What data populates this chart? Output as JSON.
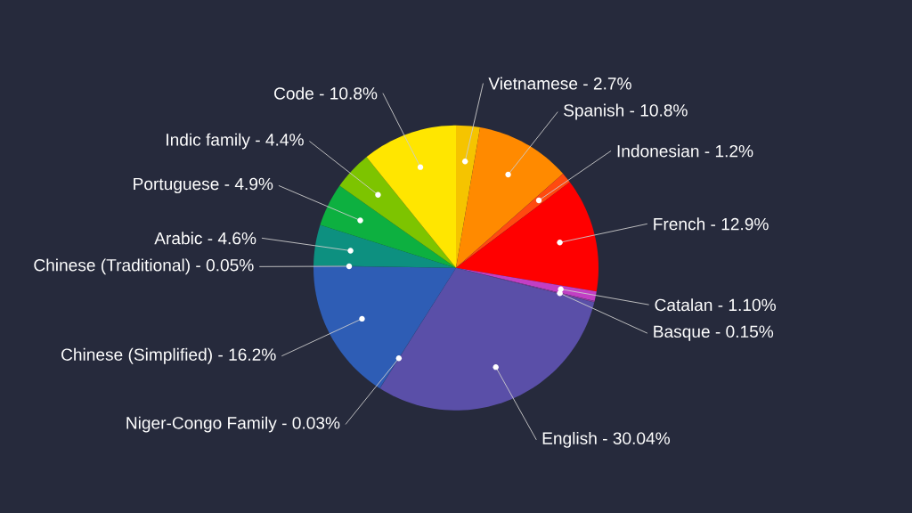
{
  "chart_data": {
    "type": "pie",
    "categories": [
      "Vietnamese - 2.7%",
      "Spanish - 10.8%",
      "Indonesian - 1.2%",
      "French - 12.9%",
      "Catalan - 1.10%",
      "Basque - 0.15%",
      "English - 30.04%",
      "Niger-Congo Family - 0.03%",
      "Chinese (Simplified) - 16.2%",
      "Chinese (Traditional) - 0.05%",
      "Arabic - 4.6%",
      "Portuguese - 4.9%",
      "Indic family - 4.4%",
      "Code - 10.8%"
    ],
    "values": [
      2.7,
      10.8,
      1.2,
      12.9,
      1.1,
      0.15,
      30.04,
      0.03,
      16.2,
      0.05,
      4.6,
      4.9,
      4.4,
      10.8
    ],
    "colors": [
      "#f5c400",
      "#ff8a00",
      "#ff4a10",
      "#ff0000",
      "#c23fc4",
      "#8c3d9e",
      "#5a4fa8",
      "#3a58a8",
      "#2e5db5",
      "#1f8f8f",
      "#0d9080",
      "#0db040",
      "#7dc400",
      "#ffe600"
    ]
  }
}
